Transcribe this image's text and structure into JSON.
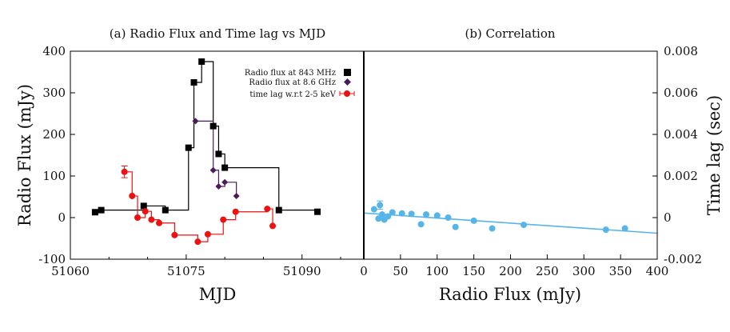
{
  "chart_data": [
    {
      "type": "line",
      "title": "(a) Radio Flux and Time lag vs MJD",
      "xlabel": "MJD",
      "ylabel": "Radio Flux (mJy)",
      "xlim": [
        51060,
        51098
      ],
      "ylim": [
        -100,
        400
      ],
      "xticks": [
        51060,
        51075,
        51090
      ],
      "yticks": [
        -100,
        0,
        100,
        200,
        300,
        400
      ],
      "legend_position": "top-right",
      "colors": {
        "radio843": "#000000",
        "radio86": "#4b1a5a",
        "timelag": "#ee1111"
      },
      "series": [
        {
          "name": "Radio flux at 843 MHz",
          "marker": "square",
          "style": "step",
          "x": [
            51063.2,
            51064.0,
            51069.5,
            51072.3,
            51075.3,
            51076.0,
            51077.0,
            51078.5,
            51079.2,
            51080.0,
            51087.0,
            51092.0
          ],
          "y": [
            13,
            18,
            28,
            18,
            168,
            325,
            375,
            220,
            153,
            120,
            18,
            14
          ]
        },
        {
          "name": "Radio flux at 8.6 GHz",
          "marker": "diamond",
          "style": "step",
          "x": [
            51076.2,
            51078.5,
            51079.2,
            51080.0,
            51081.5
          ],
          "y": [
            232,
            114,
            75,
            85,
            52
          ]
        },
        {
          "name": "time lag w.r.t 2-5 keV",
          "marker": "circle",
          "style": "step",
          "x": [
            51067.0,
            51068.0,
            51068.7,
            51069.7,
            51070.5,
            51071.5,
            51073.5,
            51076.5,
            51077.8,
            51079.8,
            51081.4,
            51085.5,
            51086.2
          ],
          "y": [
            110,
            52,
            0,
            15,
            -5,
            -13,
            -42,
            -58,
            -40,
            -5,
            14,
            21,
            -20
          ],
          "error_bars": [
            {
              "x": 51067.0,
              "y": 110,
              "err": 14
            }
          ]
        }
      ]
    },
    {
      "type": "scatter",
      "title": "(b) Correlation",
      "xlabel": "Radio Flux (mJy)",
      "ylabel": "Time lag (sec)",
      "xlim": [
        0,
        400
      ],
      "ylim": [
        -0.002,
        0.008
      ],
      "xticks": [
        0,
        50,
        100,
        150,
        200,
        250,
        300,
        350,
        400
      ],
      "yticks": [
        -0.002,
        0,
        0.002,
        0.004,
        0.006,
        0.008
      ],
      "ytick_labels": [
        "-0.002",
        "0",
        "0.002",
        "0.004",
        "0.006",
        "0.008"
      ],
      "color": "#56b4e9",
      "points": {
        "x": [
          14,
          20,
          22,
          25,
          28,
          33,
          39,
          52,
          65,
          78,
          85,
          100,
          115,
          125,
          150,
          175,
          218,
          330,
          356
        ],
        "y": [
          0.0004,
          -5e-05,
          0.0006,
          0.00015,
          -0.0001,
          6e-05,
          0.00025,
          0.0002,
          0.00018,
          -0.00032,
          0.00015,
          0.0001,
          0.0,
          -0.00045,
          -0.00015,
          -0.00052,
          -0.00035,
          -0.00058,
          -0.00052
        ]
      },
      "error_bars": [
        {
          "x": 22,
          "y": 0.0006,
          "err": 0.0002
        }
      ],
      "fit_line": {
        "x": [
          0,
          400
        ],
        "y": [
          0.00022,
          -0.00075
        ]
      }
    }
  ]
}
